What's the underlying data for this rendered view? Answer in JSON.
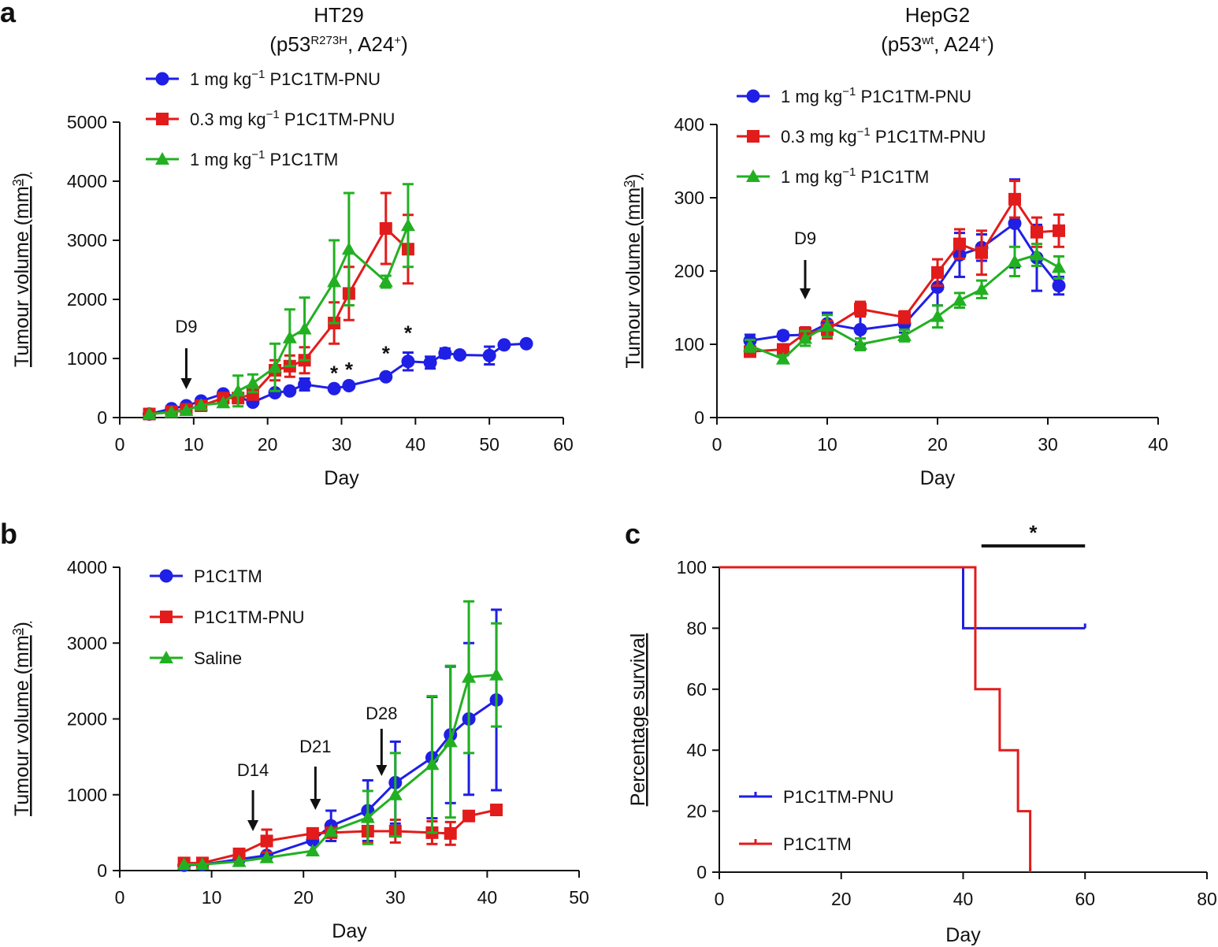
{
  "panel_letters": {
    "a": "a",
    "b": "b",
    "c": "c"
  },
  "chart_data": [
    {
      "id": "a1",
      "type": "line",
      "title_line1": "HT29",
      "title_line2": {
        "pre": "(p53",
        "sup": "R273H",
        "mid": ", A24",
        "sup2": "+",
        "post": ")"
      },
      "xlabel": "Day",
      "ylabel": "Tumour volume (mm",
      "ylabel_sup": "3",
      "ylabel_post": ")",
      "xlim": [
        0,
        60
      ],
      "ylim": [
        0,
        5000
      ],
      "xticks": [
        0,
        10,
        20,
        30,
        40,
        50,
        60
      ],
      "yticks": [
        0,
        1000,
        2000,
        3000,
        4000,
        5000
      ],
      "legend": [
        {
          "pre": "1 mg kg",
          "sup": "−1",
          "post": " P1C1TM-PNU"
        },
        {
          "pre": "0.3 mg kg",
          "sup": "−1",
          "post": " P1C1TM-PNU"
        },
        {
          "pre": "1 mg kg",
          "sup": "−1",
          "post": " P1C1TM"
        }
      ],
      "series": [
        {
          "name": "1 mg kg−1 P1C1TM-PNU",
          "color": "#1f1fe6",
          "marker": "circle",
          "x": [
            4,
            7,
            9,
            11,
            14,
            16,
            18,
            21,
            23,
            25,
            29,
            31,
            36,
            39,
            42,
            44,
            46,
            50,
            52,
            55
          ],
          "y": [
            60,
            150,
            200,
            280,
            400,
            350,
            260,
            420,
            450,
            560,
            490,
            540,
            690,
            950,
            930,
            1090,
            1060,
            1050,
            1230,
            1250
          ],
          "err": [
            0,
            0,
            0,
            0,
            0,
            0,
            0,
            0,
            0,
            100,
            0,
            0,
            0,
            150,
            100,
            80,
            0,
            150,
            0,
            0
          ]
        },
        {
          "name": "0.3 mg kg−1 P1C1TM-PNU",
          "color": "#e21b1b",
          "marker": "square",
          "x": [
            4,
            7,
            9,
            11,
            14,
            16,
            18,
            21,
            23,
            25,
            29,
            31,
            36,
            39
          ],
          "y": [
            60,
            100,
            140,
            200,
            330,
            330,
            390,
            800,
            870,
            970,
            1600,
            2100,
            3200,
            2850
          ],
          "err": [
            0,
            0,
            0,
            0,
            0,
            0,
            0,
            170,
            180,
            220,
            350,
            450,
            600,
            580
          ]
        },
        {
          "name": "1 mg kg−1 P1C1TM",
          "color": "#22b022",
          "marker": "triangle",
          "x": [
            4,
            7,
            9,
            11,
            14,
            16,
            18,
            21,
            23,
            25,
            29,
            31,
            36,
            39
          ],
          "y": [
            60,
            90,
            120,
            210,
            250,
            450,
            580,
            850,
            1350,
            1500,
            2300,
            2850,
            2300,
            3250
          ],
          "err": [
            0,
            0,
            0,
            0,
            0,
            260,
            150,
            400,
            480,
            530,
            700,
            950,
            100,
            700
          ]
        }
      ],
      "annotations": [
        {
          "text": "D9",
          "x": 9
        }
      ],
      "stars": [
        {
          "text": "*",
          "x": 29,
          "y": 770
        },
        {
          "text": "*",
          "x": 31,
          "y": 830
        },
        {
          "text": "*",
          "x": 36,
          "y": 1100
        },
        {
          "text": "*",
          "x": 39,
          "y": 1450
        }
      ]
    },
    {
      "id": "a2",
      "type": "line",
      "title_line1": "HepG2",
      "title_line2": {
        "pre": "(p53",
        "sup": "wt",
        "mid": ", A24",
        "sup2": "+",
        "post": ")"
      },
      "xlabel": "Day",
      "ylabel": "Tumour volume (mm",
      "ylabel_sup": "3",
      "ylabel_post": ")",
      "xlim": [
        0,
        40
      ],
      "ylim": [
        0,
        400
      ],
      "xticks": [
        0,
        10,
        20,
        30,
        40
      ],
      "yticks": [
        0,
        100,
        200,
        300,
        400
      ],
      "legend": [
        {
          "pre": "1 mg kg",
          "sup": "−1",
          "post": " P1C1TM-PNU"
        },
        {
          "pre": "0.3 mg kg",
          "sup": "−1",
          "post": " P1C1TM-PNU"
        },
        {
          "pre": "1 mg kg",
          "sup": "−1",
          "post": " P1C1TM"
        }
      ],
      "series": [
        {
          "name": "1 mg kg−1 P1C1TM-PNU",
          "color": "#1f1fe6",
          "marker": "circle",
          "x": [
            3,
            6,
            8,
            10,
            13,
            17,
            20,
            22,
            24,
            27,
            29,
            31
          ],
          "y": [
            105,
            112,
            113,
            128,
            120,
            128,
            178,
            222,
            232,
            265,
            218,
            180
          ],
          "err": [
            8,
            5,
            10,
            15,
            20,
            12,
            25,
            30,
            18,
            60,
            45,
            12
          ]
        },
        {
          "name": "0.3 mg kg−1 P1C1TM-PNU",
          "color": "#e21b1b",
          "marker": "square",
          "x": [
            3,
            6,
            8,
            10,
            13,
            17,
            20,
            22,
            24,
            27,
            29,
            31
          ],
          "y": [
            90,
            93,
            115,
            120,
            148,
            137,
            198,
            237,
            225,
            298,
            253,
            255
          ],
          "err": [
            5,
            5,
            8,
            12,
            10,
            8,
            18,
            20,
            30,
            25,
            20,
            22
          ]
        },
        {
          "name": "1 mg kg−1 P1C1TM",
          "color": "#22b022",
          "marker": "triangle",
          "x": [
            3,
            6,
            8,
            10,
            13,
            17,
            20,
            22,
            24,
            27,
            29,
            31
          ],
          "y": [
            98,
            80,
            108,
            125,
            100,
            112,
            138,
            160,
            175,
            213,
            222,
            205
          ],
          "err": [
            8,
            5,
            10,
            15,
            8,
            8,
            15,
            10,
            12,
            20,
            15,
            15
          ]
        }
      ],
      "annotations": [
        {
          "text": "D9",
          "x": 8
        }
      ]
    },
    {
      "id": "b",
      "type": "line",
      "xlabel": "Day",
      "ylabel": "Tumour volume (mm",
      "ylabel_sup": "3",
      "ylabel_post": ")",
      "xlim": [
        0,
        50
      ],
      "ylim": [
        0,
        4000
      ],
      "xticks": [
        0,
        10,
        20,
        30,
        40,
        50
      ],
      "yticks": [
        0,
        1000,
        2000,
        3000,
        4000
      ],
      "legend": [
        {
          "pre": "P1C1TM",
          "sup": "",
          "post": ""
        },
        {
          "pre": "P1C1TM-PNU",
          "sup": "",
          "post": ""
        },
        {
          "pre": "Saline",
          "sup": "",
          "post": ""
        }
      ],
      "series": [
        {
          "name": "P1C1TM",
          "color": "#1f1fe6",
          "marker": "circle",
          "x": [
            7,
            9,
            13,
            16,
            21,
            23,
            27,
            30,
            34,
            36,
            38,
            41
          ],
          "y": [
            70,
            80,
            150,
            200,
            400,
            590,
            790,
            1160,
            1490,
            1790,
            2000,
            2250
          ],
          "err": [
            0,
            0,
            0,
            0,
            0,
            200,
            400,
            540,
            800,
            900,
            1000,
            1190
          ]
        },
        {
          "name": "P1C1TM-PNU",
          "color": "#e21b1b",
          "marker": "square",
          "x": [
            7,
            9,
            13,
            16,
            21,
            23,
            27,
            30,
            34,
            36,
            38,
            41
          ],
          "y": [
            100,
            100,
            220,
            390,
            490,
            500,
            520,
            520,
            500,
            490,
            720,
            800
          ],
          "err": [
            50,
            50,
            60,
            150,
            60,
            60,
            150,
            150,
            150,
            150,
            60,
            60
          ]
        },
        {
          "name": "Saline",
          "color": "#22b022",
          "marker": "triangle",
          "x": [
            7,
            9,
            13,
            16,
            21,
            23,
            27,
            30,
            34,
            36,
            38,
            41
          ],
          "y": [
            80,
            80,
            120,
            170,
            260,
            520,
            700,
            1000,
            1400,
            1700,
            2550,
            2580
          ],
          "err": [
            0,
            0,
            0,
            0,
            0,
            0,
            350,
            550,
            900,
            1000,
            1000,
            680
          ]
        }
      ],
      "annotations": [
        {
          "text": "D14",
          "x": 14.5
        },
        {
          "text": "D21",
          "x": 21.3
        },
        {
          "text": "D28",
          "x": 28.5
        }
      ]
    },
    {
      "id": "c",
      "type": "line",
      "xlabel": "Day",
      "ylabel": "Percentage survival",
      "ylabel_sup": "",
      "ylabel_post": "",
      "xlim": [
        0,
        80
      ],
      "ylim": [
        0,
        100
      ],
      "xticks": [
        0,
        20,
        40,
        60,
        80
      ],
      "yticks": [
        0,
        20,
        40,
        60,
        80,
        100
      ],
      "legend": [
        {
          "pre": "P1C1TM-PNU",
          "sup": "",
          "post": ""
        },
        {
          "pre": "P1C1TM",
          "sup": "",
          "post": ""
        }
      ],
      "series": [
        {
          "name": "P1C1TM-PNU",
          "color": "#1f1fe6",
          "step": true,
          "x": [
            0,
            40,
            40,
            60
          ],
          "y": [
            100,
            100,
            80,
            80
          ]
        },
        {
          "name": "P1C1TM",
          "color": "#e21b1b",
          "step": true,
          "x": [
            0,
            42,
            42,
            46,
            46,
            49,
            49,
            51,
            51
          ],
          "y": [
            100,
            100,
            60,
            60,
            40,
            40,
            20,
            20,
            0
          ]
        }
      ],
      "significance": {
        "text": "*",
        "x1": 43,
        "x2": 60,
        "y": 107
      }
    }
  ]
}
